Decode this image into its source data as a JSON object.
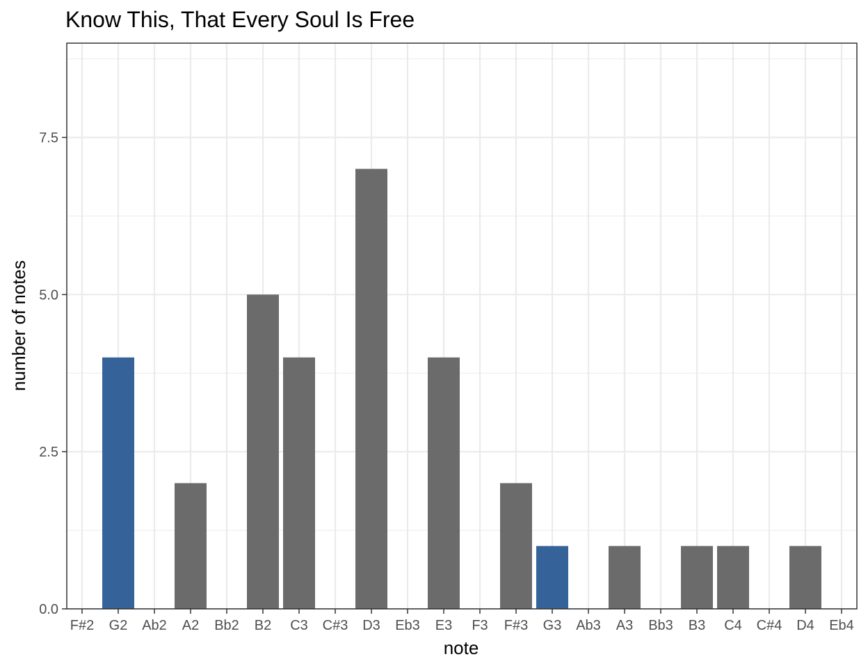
{
  "chart_data": {
    "type": "bar",
    "title": "Know This, That Every Soul Is Free",
    "xlabel": "note",
    "ylabel": "number of notes",
    "categories": [
      "F#2",
      "G2",
      "Ab2",
      "A2",
      "Bb2",
      "B2",
      "C3",
      "C#3",
      "D3",
      "Eb3",
      "E3",
      "F3",
      "F#3",
      "G3",
      "Ab3",
      "A3",
      "Bb3",
      "B3",
      "C4",
      "C#4",
      "D4",
      "Eb4"
    ],
    "values": [
      0,
      4,
      0,
      2,
      0,
      5,
      4,
      0,
      7,
      0,
      4,
      0,
      2,
      1,
      0,
      1,
      0,
      1,
      1,
      0,
      1,
      0
    ],
    "highlighted": [
      "G2",
      "G3"
    ],
    "colors": {
      "bar": "#6b6b6b",
      "highlight": "#36629a",
      "grid": "#ebebeb",
      "panel_border": "#333333"
    },
    "ylim": [
      0,
      9
    ],
    "yticks": [
      "0.0",
      "2.5",
      "5.0",
      "7.5"
    ],
    "grid": true,
    "legend": "none"
  }
}
